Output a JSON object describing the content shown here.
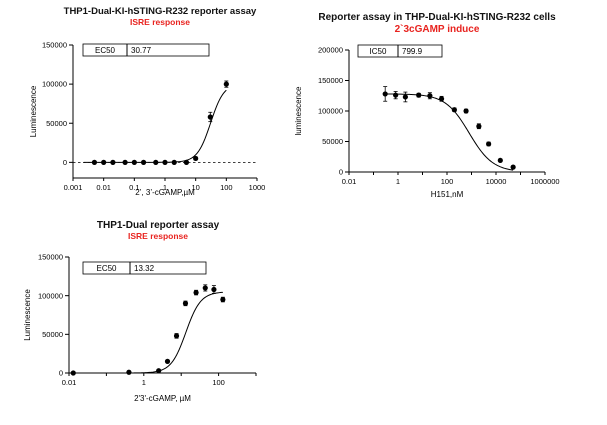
{
  "chart_data": [
    {
      "type": "scatter",
      "title": "THP1-Dual-KI-hSTING-R232 reporter assay",
      "subtitle": "ISRE response",
      "xlabel": "2’, 3’-cGAMP,µM",
      "ylabel": "Luminescence",
      "xscale": "log",
      "xlim": [
        0.001,
        1000
      ],
      "ylim": [
        -20000,
        150000
      ],
      "xticks": [
        "0.001",
        "0.01",
        "0.1",
        "1",
        "10",
        "100",
        "1000"
      ],
      "yticks": [
        "0",
        "50000",
        "100000",
        "150000"
      ],
      "annotation": {
        "label": "EC50",
        "value": "30.77"
      },
      "baseline_dashed": true,
      "fit": {
        "model": "4PL",
        "bottom": 0,
        "top": 101000,
        "ec50": 30.77,
        "hill": 2.0
      },
      "series": [
        {
          "x": [
            0.005,
            0.01,
            0.02,
            0.05,
            0.1,
            0.2,
            0.5,
            1,
            2,
            5,
            10,
            30,
            100
          ],
          "y": [
            0,
            0,
            0,
            0,
            0,
            0,
            0,
            0,
            0,
            0,
            5000,
            58000,
            100000
          ],
          "err": [
            1000,
            1000,
            1000,
            1000,
            1000,
            1000,
            1000,
            1000,
            1000,
            1000,
            2000,
            6000,
            4000
          ]
        }
      ]
    },
    {
      "type": "scatter",
      "title": "Reporter assay in THP-Dual-KI-hSTING-R232 cells",
      "subtitle": "2`3cGAMP induce",
      "xlabel": "H151,nM",
      "ylabel": "luminescence",
      "xscale": "log",
      "xlim": [
        0.01,
        1000000
      ],
      "ylim": [
        0,
        200000
      ],
      "xticks": [
        "0.01",
        "1",
        "100",
        "10000",
        "1000000"
      ],
      "yticks": [
        "0",
        "50000",
        "100000",
        "150000",
        "200000"
      ],
      "annotation": {
        "label": "IC50",
        "value": "799.9"
      },
      "fit": {
        "model": "4PL",
        "bottom": 0,
        "top": 128000,
        "ic50": 799.9,
        "hill": 0.9
      },
      "series": [
        {
          "x": [
            0.3,
            0.8,
            2,
            7,
            20,
            60,
            200,
            600,
            2000,
            5000,
            15000,
            50000
          ],
          "y": [
            128000,
            126000,
            123000,
            126000,
            125000,
            120000,
            102000,
            100000,
            75000,
            46000,
            19000,
            8000
          ],
          "err": [
            12000,
            6000,
            8000,
            3000,
            5000,
            4000,
            3000,
            3000,
            4000,
            3000,
            2000,
            2000
          ]
        }
      ]
    },
    {
      "type": "scatter",
      "title": "THP1-Dual reporter assay",
      "subtitle": "ISRE response",
      "xlabel": "2'3'-cGAMP, µM",
      "ylabel": "Luminescence",
      "xscale": "log",
      "xlim": [
        0.01,
        1000
      ],
      "ylim": [
        0,
        150000
      ],
      "xticks": [
        "0.01",
        "1",
        "100"
      ],
      "yticks": [
        "0",
        "50000",
        "100000",
        "150000"
      ],
      "annotation": {
        "label": "EC50",
        "value": "13.32"
      },
      "fit": {
        "model": "4PL",
        "bottom": 0,
        "top": 105000,
        "ec50": 13.32,
        "hill": 2.2
      },
      "series": [
        {
          "x": [
            0.013,
            0.4,
            2.5,
            4.3,
            7.5,
            13,
            25,
            44,
            75,
            130
          ],
          "y": [
            0,
            1000,
            3000,
            15000,
            48000,
            90000,
            104000,
            110000,
            108000,
            95000
          ],
          "err": [
            500,
            500,
            1000,
            1500,
            3000,
            3000,
            3000,
            4000,
            5000,
            3000
          ]
        }
      ]
    }
  ]
}
